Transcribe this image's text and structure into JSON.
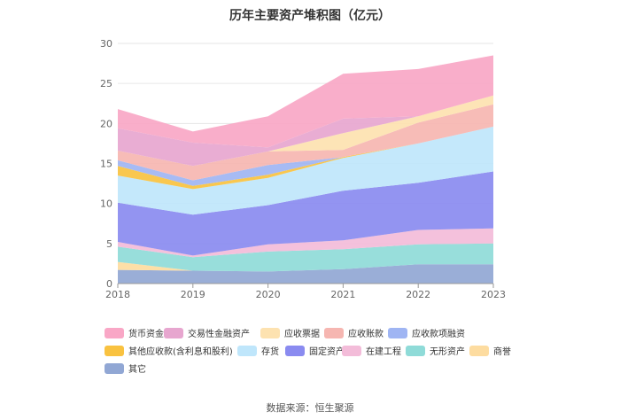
{
  "title": "历年主要资产堆积图（亿元）",
  "source": "数据来源：恒生聚源",
  "chart_data": {
    "type": "area",
    "stacked": true,
    "title": "历年主要资产堆积图（亿元）",
    "x": [
      "2018",
      "2019",
      "2020",
      "2021",
      "2022",
      "2023"
    ],
    "ylim": [
      0,
      30
    ],
    "yticks": [
      0,
      5,
      10,
      15,
      20,
      25,
      30
    ],
    "grid": true,
    "legend_position": "bottom",
    "series": [
      {
        "name": "其它",
        "color": "#91a7d4",
        "values": [
          1.7,
          1.6,
          1.5,
          1.8,
          2.4,
          2.4
        ]
      },
      {
        "name": "商誉",
        "color": "#fddca0",
        "values": [
          1.0,
          0.0,
          0.0,
          0.0,
          0.0,
          0.0
        ]
      },
      {
        "name": "无形资产",
        "color": "#8fdbd8",
        "values": [
          1.9,
          1.7,
          2.5,
          2.5,
          2.5,
          2.6
        ]
      },
      {
        "name": "在建工程",
        "color": "#f3bcd9",
        "values": [
          0.6,
          0.2,
          0.9,
          1.1,
          1.8,
          1.9
        ]
      },
      {
        "name": "固定资产",
        "color": "#8a8bf0",
        "values": [
          4.9,
          5.1,
          4.9,
          6.2,
          5.9,
          7.1
        ]
      },
      {
        "name": "存货",
        "color": "#bfe6fb",
        "values": [
          3.4,
          3.2,
          3.4,
          4.1,
          4.9,
          5.6
        ]
      },
      {
        "name": "其他应收款(含利息和股利)",
        "color": "#f9c240",
        "values": [
          1.2,
          0.4,
          0.4,
          0.1,
          0.0,
          0.0
        ]
      },
      {
        "name": "应收款项融资",
        "color": "#9fb5f3",
        "values": [
          0.7,
          0.7,
          1.2,
          0.0,
          0.0,
          0.0
        ]
      },
      {
        "name": "应收账款",
        "color": "#f6b6b1",
        "values": [
          1.2,
          1.8,
          1.7,
          0.9,
          2.6,
          2.8
        ]
      },
      {
        "name": "应收票据",
        "color": "#fde2b0",
        "values": [
          0.0,
          0.0,
          0.0,
          2.1,
          0.8,
          1.1
        ]
      },
      {
        "name": "交易性金融资产",
        "color": "#e7a6cf",
        "values": [
          2.8,
          2.9,
          0.5,
          1.8,
          0.0,
          0.0
        ]
      },
      {
        "name": "货币资金",
        "color": "#f9a7c6",
        "values": [
          2.4,
          1.4,
          3.9,
          5.6,
          5.9,
          5.0
        ]
      }
    ]
  },
  "legend_rows": [
    [
      "货币资金",
      "交易性金融资产",
      "应收票据",
      "应收账款",
      "应收款项融资"
    ],
    [
      "其他应收款(含利息和股利)",
      "存货",
      "固定资产",
      "在建工程",
      "无形资产",
      "商誉"
    ],
    [
      "其它"
    ]
  ]
}
